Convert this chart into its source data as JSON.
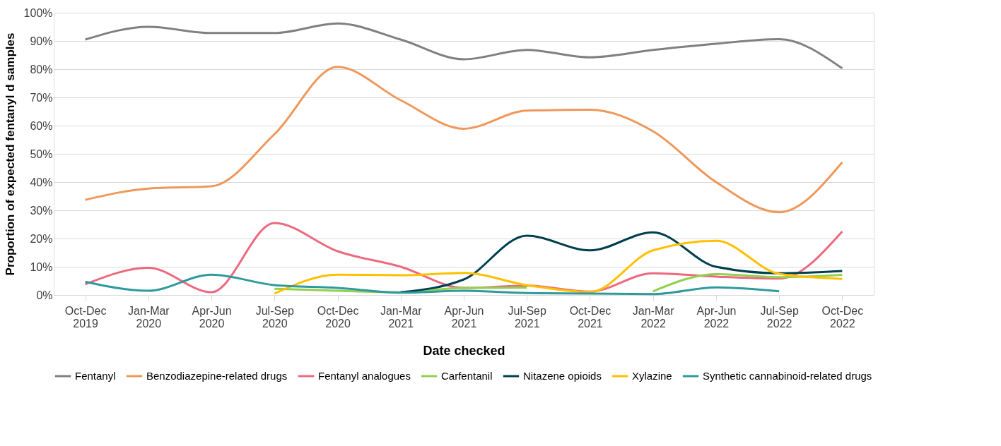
{
  "chart_data": {
    "type": "line",
    "xlabel": "Date checked",
    "ylabel": "Proportion of expected fentanyl d samples",
    "categories": [
      "Oct-Dec 2019",
      "Jan-Mar 2020",
      "Apr-Jun 2020",
      "Jul-Sep 2020",
      "Oct-Dec 2020",
      "Jan-Mar 2021",
      "Apr-Jun 2021",
      "Jul-Sep 2021",
      "Oct-Dec 2021",
      "Jan-Mar 2022",
      "Apr-Jun 2022",
      "Jul-Sep 2022",
      "Oct-Dec 2022"
    ],
    "series": [
      {
        "name": "Fentanyl",
        "color": "#808080",
        "values": [
          90.5,
          95,
          92.8,
          92.8,
          96.2,
          90.5,
          83.5,
          86.8,
          84.2,
          86.8,
          89,
          90.6,
          80.3
        ]
      },
      {
        "name": "Benzodiazepine-related drugs",
        "color": "#f0975a",
        "values": [
          33.7,
          37.7,
          38.5,
          57,
          80.8,
          69,
          58.9,
          65.3,
          65.6,
          58,
          40,
          29.3,
          47
        ]
      },
      {
        "name": "Fentanyl analogues",
        "color": "#ec6a7f",
        "values": [
          3.8,
          9.6,
          1,
          25.5,
          15.5,
          10,
          2.5,
          3.3,
          1.2,
          7.7,
          6.5,
          5.8,
          22.5
        ]
      },
      {
        "name": "Carfentanil",
        "color": "#92d050",
        "values": [
          null,
          null,
          null,
          2.2,
          1.5,
          1,
          2.5,
          2.6,
          null,
          1.3,
          7.4,
          6.3,
          7.1
        ]
      },
      {
        "name": "Nitazene opioids",
        "color": "#003f4f",
        "values": [
          null,
          null,
          null,
          null,
          null,
          1,
          5.5,
          21,
          15.8,
          22.2,
          10,
          7.7,
          8.5
        ]
      },
      {
        "name": "Xylazine",
        "color": "#ffc000",
        "values": [
          null,
          null,
          null,
          0.5,
          7.2,
          7,
          7.8,
          3.5,
          1,
          15.8,
          19.2,
          7.5,
          5.7
        ]
      },
      {
        "name": "Synthetic cannabinoid-related drugs",
        "color": "#2e9a9c",
        "values": [
          4.7,
          1.5,
          7.2,
          3.5,
          2.5,
          0.8,
          1.5,
          0.7,
          0.5,
          0.3,
          2.7,
          1.3,
          null
        ]
      }
    ],
    "ylim": [
      0,
      100
    ],
    "yticks": [
      {
        "value": 0,
        "label": "0%"
      },
      {
        "value": 10,
        "label": "10%"
      },
      {
        "value": 20,
        "label": "20%"
      },
      {
        "value": 30,
        "label": "30%"
      },
      {
        "value": 40,
        "label": "40%"
      },
      {
        "value": 50,
        "label": "50%"
      },
      {
        "value": 60,
        "label": "60%"
      },
      {
        "value": 70,
        "label": "70%"
      },
      {
        "value": 80,
        "label": "80%"
      },
      {
        "value": 90,
        "label": "90%"
      },
      {
        "value": 100,
        "label": "100%"
      }
    ],
    "grid": "y",
    "legend": "bottom",
    "marker": "none",
    "line_style": "solid"
  }
}
